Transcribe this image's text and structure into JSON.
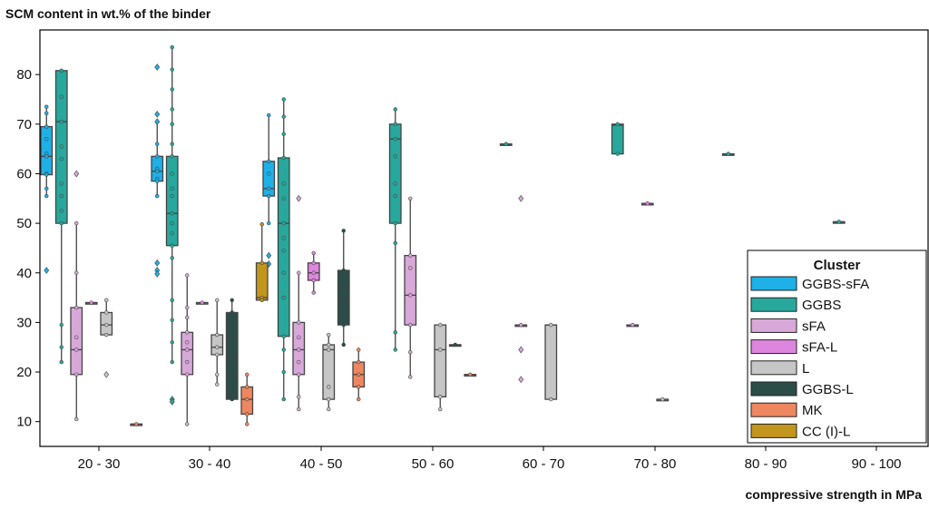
{
  "chart_data": {
    "type": "boxplot",
    "ylabel": "SCM content in wt.% of the binder",
    "xlabel": "compressive strength in MPa",
    "ylim": [
      5,
      89
    ],
    "yticks": [
      10,
      20,
      30,
      40,
      50,
      60,
      70,
      80
    ],
    "categories": [
      "20 - 30",
      "30 - 40",
      "40 - 50",
      "50 - 60",
      "60 - 70",
      "70 - 80",
      "80 - 90",
      "90 - 100"
    ],
    "grid": false,
    "legend": {
      "title": "Cluster",
      "placement": "lower-right"
    },
    "series": [
      {
        "name": "GGBS-sFA",
        "color": "#1eb0e6",
        "boxes": [
          {
            "category": "20 - 30",
            "min": 55.5,
            "q1": 59.8,
            "median": 63.5,
            "q3": 69.5,
            "max": 73.5,
            "points": [
              73.5,
              72.2,
              69.5,
              67,
              64,
              63.5,
              60,
              59.8,
              57,
              55.5
            ],
            "outliers": [
              40.5
            ]
          },
          {
            "category": "30 - 40",
            "min": 55.5,
            "q1": 58.5,
            "median": 60.5,
            "q3": 63.5,
            "max": 70.5,
            "points": [
              70.5,
              66,
              63.5,
              61,
              60.5,
              59,
              58.5,
              55.5
            ],
            "outliers": [
              81.5,
              72,
              70.5,
              42,
              40.5,
              39.8
            ]
          },
          {
            "category": "40 - 50",
            "min": 50,
            "q1": 55.5,
            "median": 57,
            "q3": 62.5,
            "max": 71.8,
            "points": [
              71.8,
              62.5,
              60,
              57,
              55.5,
              50
            ],
            "outliers": [
              43.5,
              41.8
            ]
          }
        ]
      },
      {
        "name": "GGBS",
        "color": "#28a89c",
        "boxes": [
          {
            "category": "20 - 30",
            "min": 22,
            "q1": 50,
            "median": 70.5,
            "q3": 80.8,
            "max": 80.8,
            "points": [
              80.8,
              75.5,
              70.5,
              65.5,
              63,
              58,
              55.5,
              52.5,
              50,
              29.5,
              25,
              22
            ],
            "outliers": []
          },
          {
            "category": "30 - 40",
            "min": 22,
            "q1": 45.5,
            "median": 52,
            "q3": 63.5,
            "max": 85.5,
            "points": [
              85.5,
              81,
              77,
              73,
              70,
              66,
              63.5,
              60,
              57,
              55.5,
              52,
              50,
              48,
              45.5,
              43,
              34.5,
              30.5,
              26,
              22
            ],
            "outliers": [
              14.5,
              14
            ]
          },
          {
            "category": "40 - 50",
            "min": 14.5,
            "q1": 27.2,
            "median": 50,
            "q3": 63.2,
            "max": 75,
            "points": [
              75,
              71.5,
              68,
              63.2,
              58,
              55,
              50,
              47,
              44.5,
              40,
              35,
              27.2,
              24.5,
              20,
              14.5
            ],
            "outliers": []
          },
          {
            "category": "50 - 60",
            "min": 24.5,
            "q1": 50,
            "median": 67,
            "q3": 70,
            "max": 73,
            "points": [
              73,
              70,
              67,
              63.5,
              58,
              55.5,
              50,
              46,
              28,
              24.5
            ],
            "outliers": []
          },
          {
            "category": "60 - 70",
            "min": 66,
            "q1": 66,
            "median": 66,
            "q3": 66,
            "max": 66,
            "points": [
              66
            ],
            "outliers": []
          },
          {
            "category": "70 - 80",
            "min": 64,
            "q1": 64,
            "median": 69.8,
            "q3": 70,
            "max": 70,
            "points": [
              70,
              64
            ],
            "outliers": []
          },
          {
            "category": "80 - 90",
            "min": 64,
            "q1": 64,
            "median": 64,
            "q3": 64,
            "max": 64,
            "points": [
              64
            ],
            "outliers": []
          },
          {
            "category": "90 - 100",
            "min": 50.3,
            "q1": 50.3,
            "median": 50.3,
            "q3": 50.3,
            "max": 50.3,
            "points": [
              50.3
            ],
            "outliers": []
          }
        ]
      },
      {
        "name": "sFA",
        "color": "#d8a8d8",
        "boxes": [
          {
            "category": "20 - 30",
            "min": 10.5,
            "q1": 19.5,
            "median": 24.5,
            "q3": 33,
            "max": 50,
            "points": [
              50,
              40,
              33,
              27,
              24.5,
              19.5,
              10.5
            ],
            "outliers": [
              60
            ]
          },
          {
            "category": "30 - 40",
            "min": 9.5,
            "q1": 19.5,
            "median": 24.5,
            "q3": 28,
            "max": 39.5,
            "points": [
              39.5,
              33,
              31,
              28,
              26,
              24.5,
              22,
              19.5,
              9.5
            ],
            "outliers": []
          },
          {
            "category": "40 - 50",
            "min": 12.5,
            "q1": 19.5,
            "median": 24.5,
            "q3": 30,
            "max": 40,
            "points": [
              40,
              30,
              27,
              24.5,
              22,
              19.5,
              15,
              12.5
            ],
            "outliers": [
              55
            ]
          },
          {
            "category": "50 - 60",
            "min": 19,
            "q1": 29.5,
            "median": 35.5,
            "q3": 43.5,
            "max": 55,
            "points": [
              55,
              43.5,
              41,
              35.5,
              29.5,
              24,
              19
            ],
            "outliers": []
          },
          {
            "category": "60 - 70",
            "min": 29.5,
            "q1": 29.5,
            "median": 29.5,
            "q3": 29.5,
            "max": 29.5,
            "points": [
              29.5
            ],
            "outliers": [
              55,
              24.5,
              18.5
            ]
          },
          {
            "category": "70 - 80",
            "min": 29.5,
            "q1": 29.5,
            "median": 29.5,
            "q3": 29.5,
            "max": 29.5,
            "points": [
              29.5
            ],
            "outliers": []
          }
        ]
      },
      {
        "name": "sFA-L",
        "color": "#dd86dd",
        "boxes": [
          {
            "category": "20 - 30",
            "min": 34,
            "q1": 34,
            "median": 34,
            "q3": 34,
            "max": 34,
            "points": [
              34
            ],
            "outliers": []
          },
          {
            "category": "30 - 40",
            "min": 34,
            "q1": 34,
            "median": 34,
            "q3": 34,
            "max": 34,
            "points": [
              34
            ],
            "outliers": []
          },
          {
            "category": "40 - 50",
            "min": 36,
            "q1": 38.5,
            "median": 40,
            "q3": 42,
            "max": 44,
            "points": [
              44,
              42,
              40,
              38.5,
              36
            ],
            "outliers": []
          },
          {
            "category": "70 - 80",
            "min": 54,
            "q1": 54,
            "median": 54,
            "q3": 54,
            "max": 54,
            "points": [
              54
            ],
            "outliers": []
          }
        ]
      },
      {
        "name": "L",
        "color": "#c6c6c6",
        "boxes": [
          {
            "category": "20 - 30",
            "min": 27.5,
            "q1": 27.5,
            "median": 29.5,
            "q3": 32,
            "max": 34.5,
            "points": [
              34.5,
              32,
              29.5,
              27.5
            ],
            "outliers": [
              19.5
            ]
          },
          {
            "category": "30 - 40",
            "min": 17.5,
            "q1": 23.5,
            "median": 25,
            "q3": 27.5,
            "max": 34.5,
            "points": [
              34.5,
              27.5,
              25,
              23.5,
              19.5,
              17.5
            ],
            "outliers": []
          },
          {
            "category": "40 - 50",
            "min": 12.5,
            "q1": 14.5,
            "median": 24.5,
            "q3": 25.5,
            "max": 27.5,
            "points": [
              27.5,
              25.5,
              24.5,
              17,
              14.5,
              12.5
            ],
            "outliers": []
          },
          {
            "category": "50 - 60",
            "min": 12.5,
            "q1": 15,
            "median": 24.5,
            "q3": 29.5,
            "max": 29.5,
            "points": [
              29.5,
              24.5,
              15,
              12.5
            ],
            "outliers": []
          },
          {
            "category": "60 - 70",
            "min": 14.5,
            "q1": 14.5,
            "median": 29.5,
            "q3": 29.5,
            "max": 29.5,
            "points": [
              29.5,
              14.5
            ],
            "outliers": []
          },
          {
            "category": "70 - 80",
            "min": 14.5,
            "q1": 14.5,
            "median": 14.5,
            "q3": 14.5,
            "max": 14.5,
            "points": [
              14.5
            ],
            "outliers": []
          }
        ]
      },
      {
        "name": "GGBS-L",
        "color": "#2c4c48",
        "boxes": [
          {
            "category": "30 - 40",
            "min": 14.5,
            "q1": 14.5,
            "median": 23,
            "q3": 32,
            "max": 34.5,
            "points": [
              34.5,
              32,
              27,
              23,
              19.5,
              14.5
            ],
            "outliers": []
          },
          {
            "category": "40 - 50",
            "min": 25.5,
            "q1": 29.5,
            "median": 34.5,
            "q3": 40.5,
            "max": 48.5,
            "points": [
              48.5,
              40.5,
              37,
              34.5,
              29.5,
              25.5
            ],
            "outliers": []
          },
          {
            "category": "50 - 60",
            "min": 25.5,
            "q1": 25.5,
            "median": 25.5,
            "q3": 25.5,
            "max": 25.5,
            "points": [
              25.5
            ],
            "outliers": []
          }
        ]
      },
      {
        "name": "MK",
        "color": "#ee8760",
        "boxes": [
          {
            "category": "20 - 30",
            "min": 9.5,
            "q1": 9.5,
            "median": 9.5,
            "q3": 9.5,
            "max": 9.5,
            "points": [
              9.5
            ],
            "outliers": []
          },
          {
            "category": "30 - 40",
            "min": 9.5,
            "q1": 11.5,
            "median": 14.5,
            "q3": 17,
            "max": 19.5,
            "points": [
              19.5,
              17,
              14.5,
              11.5,
              9.5
            ],
            "outliers": []
          },
          {
            "category": "40 - 50",
            "min": 14.5,
            "q1": 17,
            "median": 19.5,
            "q3": 22,
            "max": 24.5,
            "points": [
              24.5,
              22,
              19.5,
              17,
              14.5
            ],
            "outliers": []
          },
          {
            "category": "50 - 60",
            "min": 19.5,
            "q1": 19.5,
            "median": 19.5,
            "q3": 19.5,
            "max": 19.5,
            "points": [
              19.5
            ],
            "outliers": []
          }
        ]
      },
      {
        "name": "CC (I)-L",
        "color": "#c2961c",
        "boxes": [
          {
            "category": "30 - 40",
            "min": 34.5,
            "q1": 34.5,
            "median": 35,
            "q3": 42,
            "max": 49.8,
            "points": [
              49.8,
              42,
              35,
              34.5
            ],
            "outliers": []
          }
        ]
      }
    ]
  }
}
